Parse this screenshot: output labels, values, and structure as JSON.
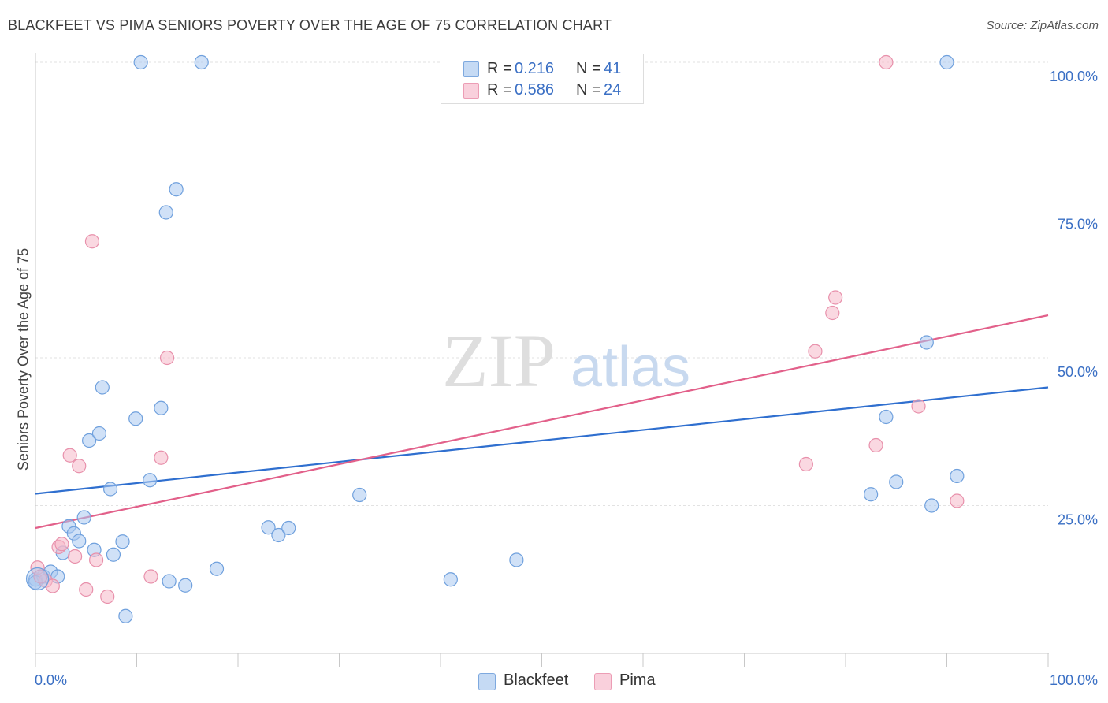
{
  "header": {
    "title": "BLACKFEET VS PIMA SENIORS POVERTY OVER THE AGE OF 75 CORRELATION CHART",
    "source": "Source: ZipAtlas.com"
  },
  "watermark": {
    "zip": "ZIP",
    "atlas": "atlas"
  },
  "legend": {
    "rows": [
      {
        "r_label": "R =",
        "r_value": "0.216",
        "n_label": "N =",
        "n_value": "41",
        "color": "#a9c8f0"
      },
      {
        "r_label": "R =",
        "r_value": "0.586",
        "n_label": "N =",
        "n_value": "24",
        "color": "#f5b8c8"
      }
    ]
  },
  "bottom_legend": {
    "items": [
      {
        "label": "Blackfeet",
        "color": "#a9c8f0"
      },
      {
        "label": "Pima",
        "color": "#f5b8c8"
      }
    ]
  },
  "chart_data": {
    "type": "scatter",
    "title": "BLACKFEET VS PIMA SENIORS POVERTY OVER THE AGE OF 75 CORRELATION CHART",
    "xlabel": "",
    "ylabel": "Seniors Poverty Over the Age of 75",
    "xlim": [
      0,
      100
    ],
    "ylim": [
      0,
      100
    ],
    "x_tick_labels": [
      "0.0%",
      "100.0%"
    ],
    "y_tick_labels": [
      "25.0%",
      "50.0%",
      "75.0%",
      "100.0%"
    ],
    "y_ticks": [
      25,
      50,
      75,
      100
    ],
    "grid": true,
    "legend_position": "top-center",
    "series": [
      {
        "name": "Blackfeet",
        "color": "#a9c8f0",
        "stroke": "#6fa0dd",
        "trend_color": "#2f6fcf",
        "trend": {
          "x": [
            0,
            100
          ],
          "y": [
            27.0,
            45.0
          ]
        },
        "points": [
          [
            0.0,
            12.5
          ],
          [
            0.8,
            13.0
          ],
          [
            1.5,
            13.8
          ],
          [
            2.2,
            13.0
          ],
          [
            2.7,
            17.0
          ],
          [
            3.3,
            21.5
          ],
          [
            3.8,
            20.3
          ],
          [
            4.3,
            19.0
          ],
          [
            4.8,
            23.0
          ],
          [
            5.8,
            17.5
          ],
          [
            5.3,
            36.0
          ],
          [
            6.3,
            37.2
          ],
          [
            6.6,
            45.0
          ],
          [
            7.4,
            27.8
          ],
          [
            7.7,
            16.7
          ],
          [
            8.6,
            18.9
          ],
          [
            8.9,
            6.3
          ],
          [
            9.9,
            39.7
          ],
          [
            10.4,
            100.0
          ],
          [
            11.3,
            29.3
          ],
          [
            12.4,
            41.5
          ],
          [
            12.9,
            74.6
          ],
          [
            13.2,
            12.2
          ],
          [
            13.9,
            78.5
          ],
          [
            14.8,
            11.5
          ],
          [
            16.4,
            100.0
          ],
          [
            17.9,
            14.3
          ],
          [
            23.0,
            21.3
          ],
          [
            24.0,
            20.0
          ],
          [
            25.0,
            21.2
          ],
          [
            32.0,
            26.8
          ],
          [
            41.0,
            12.5
          ],
          [
            47.5,
            15.8
          ],
          [
            82.5,
            26.9
          ],
          [
            84.0,
            40.0
          ],
          [
            85.0,
            29.0
          ],
          [
            88.0,
            52.6
          ],
          [
            88.5,
            25.0
          ],
          [
            90.0,
            100.0
          ],
          [
            91.0,
            30.0
          ],
          [
            0.0,
            12.0
          ]
        ]
      },
      {
        "name": "Pima",
        "color": "#f5b8c8",
        "stroke": "#e890ab",
        "trend_color": "#e2608a",
        "trend": {
          "x": [
            0,
            100
          ],
          "y": [
            21.2,
            57.2
          ]
        },
        "points": [
          [
            0.2,
            14.5
          ],
          [
            1.0,
            12.3
          ],
          [
            1.7,
            11.4
          ],
          [
            2.3,
            18.0
          ],
          [
            2.6,
            18.5
          ],
          [
            3.4,
            33.5
          ],
          [
            3.9,
            16.4
          ],
          [
            4.3,
            31.7
          ],
          [
            5.0,
            10.8
          ],
          [
            5.6,
            69.7
          ],
          [
            6.0,
            15.8
          ],
          [
            7.1,
            9.6
          ],
          [
            11.4,
            13.0
          ],
          [
            12.4,
            33.1
          ],
          [
            13.0,
            50.0
          ],
          [
            76.1,
            32.0
          ],
          [
            77.0,
            51.1
          ],
          [
            78.7,
            57.6
          ],
          [
            79.0,
            60.2
          ],
          [
            83.0,
            35.2
          ],
          [
            84.0,
            100.0
          ],
          [
            87.2,
            41.8
          ],
          [
            91.0,
            25.8
          ],
          [
            0.5,
            13.0
          ]
        ]
      }
    ]
  }
}
